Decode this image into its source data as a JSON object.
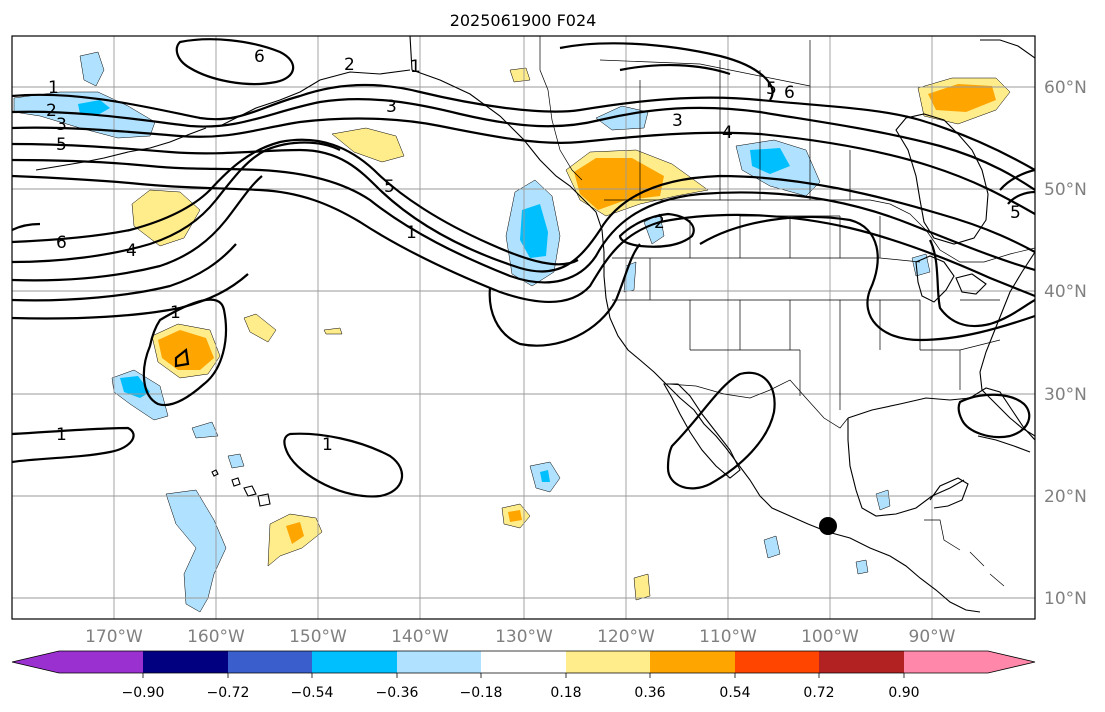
{
  "title": "2025061900 F024",
  "longitude_labels": [
    "170°W",
    "160°W",
    "150°W",
    "140°W",
    "130°W",
    "120°W",
    "110°W",
    "100°W",
    "90°W"
  ],
  "latitude_labels": [
    "60°N",
    "50°N",
    "40°N",
    "30°N",
    "20°N",
    "10°N"
  ],
  "colorbar": {
    "tick_labels": [
      "−0.90",
      "−0.72",
      "−0.54",
      "−0.36",
      "−0.18",
      "0.18",
      "0.36",
      "0.54",
      "0.72",
      "0.90"
    ],
    "colors": [
      "#9b30d0",
      "#000080",
      "#3a5fcd",
      "#00bfff",
      "#b0e2ff",
      "#ffffff",
      "#ffec8b",
      "#ffa500",
      "#ff4500",
      "#b22222",
      "#ff88aa"
    ]
  },
  "contour_labels": {
    "c1": "1",
    "c2": "2",
    "c3": "3",
    "c4": "4",
    "c5": "5",
    "c6": "6"
  },
  "marker": {
    "name": "black-dot",
    "lat": 17,
    "lon": -100
  }
}
